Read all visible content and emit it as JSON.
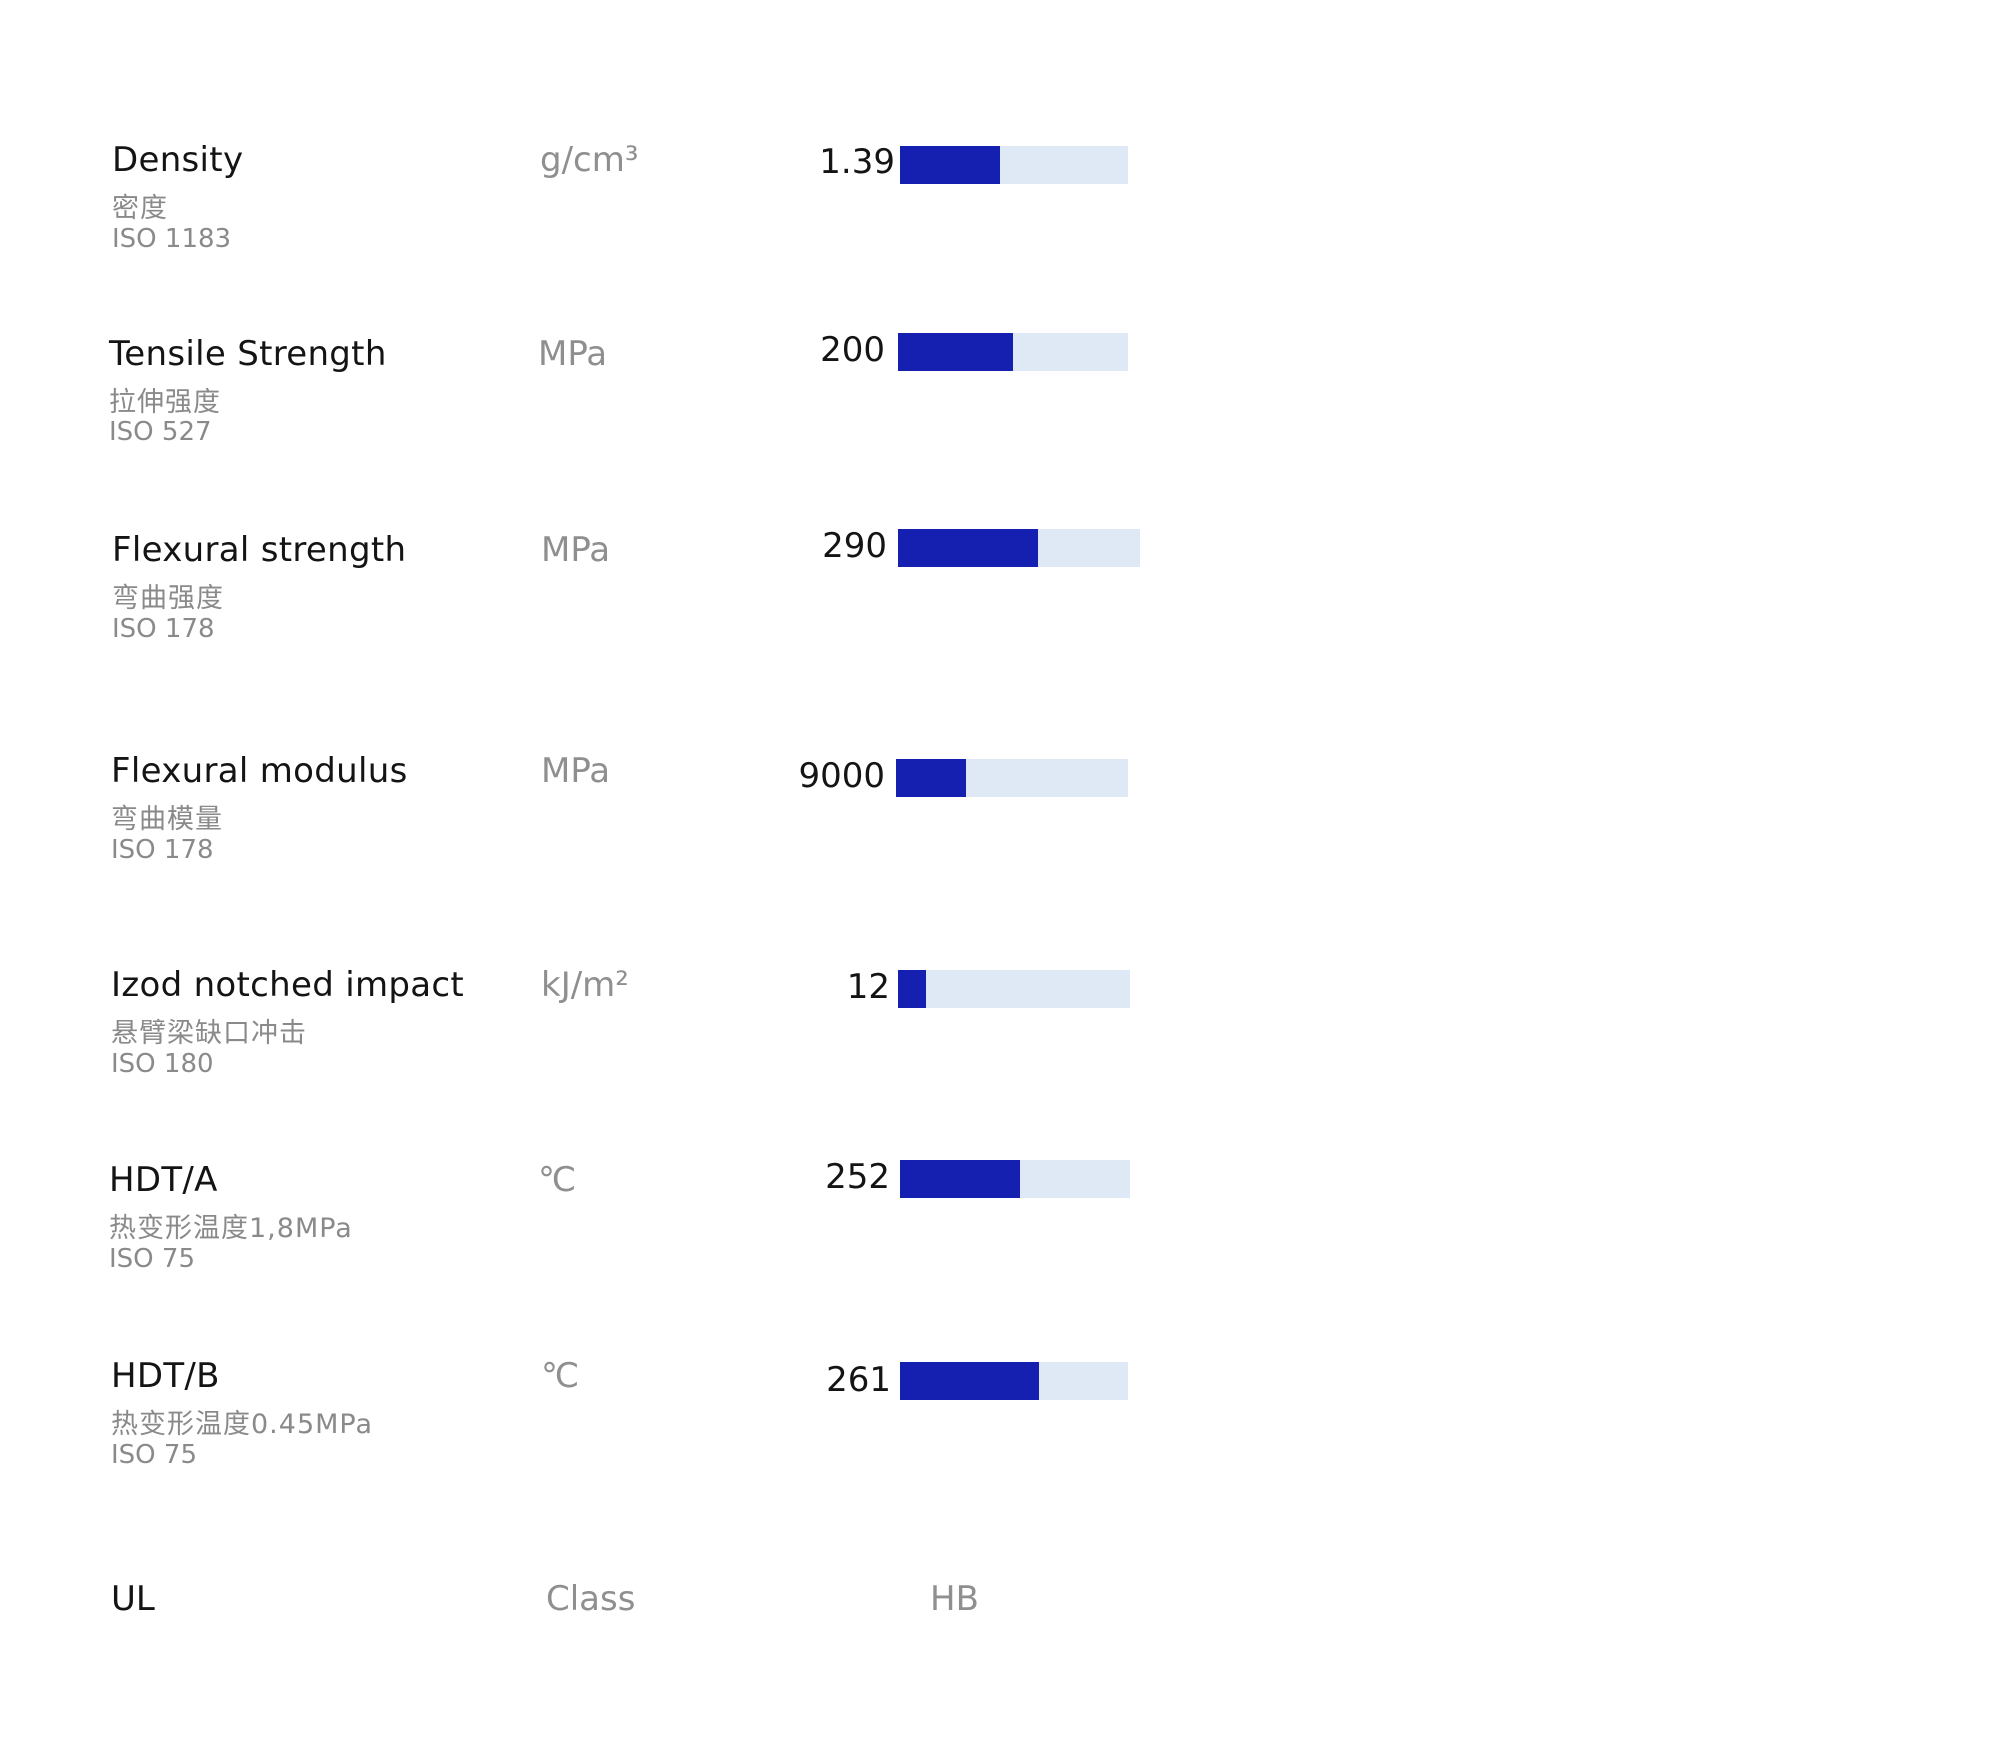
{
  "properties": [
    {
      "name": "Density",
      "cn": "密度",
      "standard": "ISO 1183",
      "unit": "g/cm³",
      "value": "1.39",
      "fill": 0.44
    },
    {
      "name": "Tensile Strength",
      "cn": "拉伸强度",
      "standard": "ISO 527",
      "unit": "MPa",
      "value": "200",
      "fill": 0.5
    },
    {
      "name": "Flexural strength",
      "cn": "弯曲强度",
      "standard": "ISO 178",
      "unit": "MPa",
      "value": "290",
      "fill": 0.58
    },
    {
      "name": "Flexural modulus",
      "cn": "弯曲模量",
      "standard": "ISO 178",
      "unit": "MPa",
      "value": "9000",
      "fill": 0.3
    },
    {
      "name": "Izod notched impact",
      "cn": "悬臂梁缺口冲击",
      "standard": "ISO 180",
      "unit": "kJ/m²",
      "value": "12",
      "fill": 0.12
    },
    {
      "name": "HDT/A",
      "cn": "热变形温度1,8MPa",
      "standard": "ISO 75",
      "unit": "℃",
      "value": "252",
      "fill": 0.52
    },
    {
      "name": "HDT/B",
      "cn": "热变形温度0.45MPa",
      "standard": "ISO 75",
      "unit": "℃",
      "value": "261",
      "fill": 0.61
    }
  ],
  "ul": {
    "name": "UL",
    "unit": "Class",
    "value": "HB"
  },
  "colors": {
    "bar_fill": "#1520b0",
    "bar_track": "#dfe8f5",
    "label_gray": "#8a8a8a",
    "text_dark": "#141414"
  }
}
